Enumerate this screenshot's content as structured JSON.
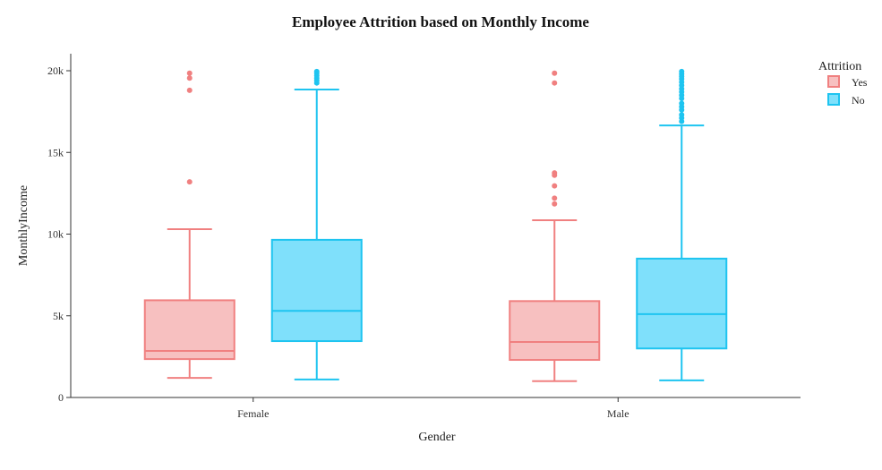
{
  "chart_data": {
    "type": "box",
    "title": "Employee Attrition based on Monthly Income",
    "xlabel": "Gender",
    "ylabel": "MonthlyIncome",
    "categories": [
      "Female",
      "Male"
    ],
    "ylim": [
      0,
      20000
    ],
    "yticks": [
      0,
      5000,
      10000,
      15000,
      20000
    ],
    "ytick_labels": [
      "0",
      "5k",
      "10k",
      "15k",
      "20k"
    ],
    "legend": {
      "title": "Attrition",
      "position": "top-right"
    },
    "series": [
      {
        "name": "Yes",
        "color": "#f08080",
        "fill": "#f7c0c0",
        "boxes": [
          {
            "category": "Female",
            "min": 1200,
            "q1": 2350,
            "median": 2850,
            "q3": 5950,
            "max": 10300,
            "outliers": [
              13200,
              18800,
              19550,
              19850
            ]
          },
          {
            "category": "Male",
            "min": 1000,
            "q1": 2300,
            "median": 3400,
            "q3": 5900,
            "max": 10850,
            "outliers": [
              11850,
              12200,
              12950,
              13600,
              13750,
              19250,
              19850
            ]
          }
        ]
      },
      {
        "name": "No",
        "color": "#1ec4f0",
        "fill": "#7fe0fb",
        "boxes": [
          {
            "category": "Female",
            "min": 1100,
            "q1": 3450,
            "median": 5300,
            "q3": 9650,
            "max": 18850,
            "outliers": [
              19250,
              19400,
              19550,
              19700,
              19850,
              19950
            ]
          },
          {
            "category": "Male",
            "min": 1050,
            "q1": 3000,
            "median": 5100,
            "q3": 8500,
            "max": 16650,
            "outliers": [
              16900,
              17100,
              17300,
              17600,
              17800,
              18000,
              18300,
              18500,
              18700,
              18900,
              19100,
              19300,
              19500,
              19650,
              19800,
              19950
            ]
          }
        ]
      }
    ]
  }
}
